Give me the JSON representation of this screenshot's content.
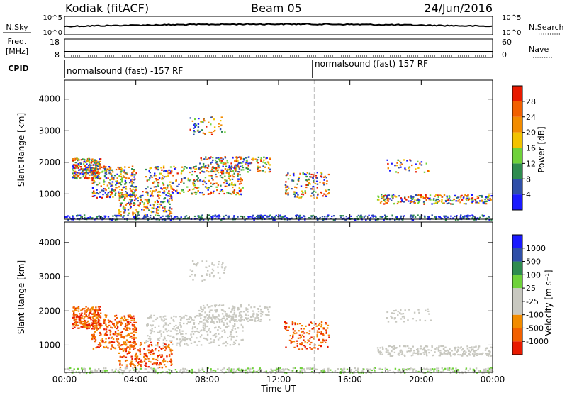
{
  "header": {
    "title": "Kodiak (fitACF)",
    "beam": "Beam 05",
    "date": "24/Jun/2016"
  },
  "strips": {
    "nsky_label": "N.Sky",
    "nsearch_label": "N.Search",
    "noise_ticks_left": [
      "10^5",
      "10^0"
    ],
    "noise_ticks_right": [
      "10^5",
      "10^0"
    ],
    "freq_label_1": "Freq.",
    "freq_label_2": "[MHz]",
    "freq_ticks": [
      "18",
      "8"
    ],
    "nave_label": "Nave",
    "nave_ticks": [
      "60",
      "0"
    ],
    "cpid_label": "CPID",
    "cpid_segments": [
      "normalsound (fast) -157 RF",
      "normalsound (fast) 157 RF"
    ]
  },
  "colors": {
    "power": [
      "#1a1aff",
      "#2f4fa8",
      "#2f8c4f",
      "#6fd23a",
      "#f2c300",
      "#f28c00",
      "#f26000",
      "#e81a00"
    ],
    "velocity": [
      "#e81a00",
      "#f26000",
      "#f28c00",
      "#c8c8c0",
      "#c8c8c0",
      "#6fd23a",
      "#2f8c4f",
      "#2f4fa8",
      "#1a1aff"
    ]
  },
  "chart_data": [
    {
      "type": "heatmap",
      "panel": "power",
      "ylabel": "Slant Range [km]",
      "xlabel": "Time UT",
      "x_ticks": [
        "00:00",
        "04:00",
        "08:00",
        "12:00",
        "16:00",
        "20:00",
        "00:00"
      ],
      "y_ticks": [
        1000,
        2000,
        3000,
        4000
      ],
      "ylim": [
        200,
        4600
      ],
      "xlim_hours": [
        0,
        24
      ],
      "colorbar_label": "Power [dB]",
      "colorbar_ticks": [
        "4",
        "8",
        "12",
        "16",
        "20",
        "24",
        "28"
      ],
      "mode_change_hour": 14.0
    },
    {
      "type": "heatmap",
      "panel": "velocity",
      "ylabel": "Slant Range [km]",
      "xlabel": "Time UT",
      "x_ticks": [
        "00:00",
        "04:00",
        "08:00",
        "12:00",
        "16:00",
        "20:00",
        "00:00"
      ],
      "y_ticks": [
        1000,
        2000,
        3000,
        4000
      ],
      "ylim": [
        200,
        4600
      ],
      "xlim_hours": [
        0,
        24
      ],
      "colorbar_label": "Velocity [m s⁻¹]",
      "colorbar_ticks": [
        "1000",
        "500",
        "100",
        "25",
        "-25",
        "-100",
        "-500",
        "-1000"
      ],
      "mode_change_hour": 14.0
    }
  ],
  "time_axis_label": "Time UT"
}
